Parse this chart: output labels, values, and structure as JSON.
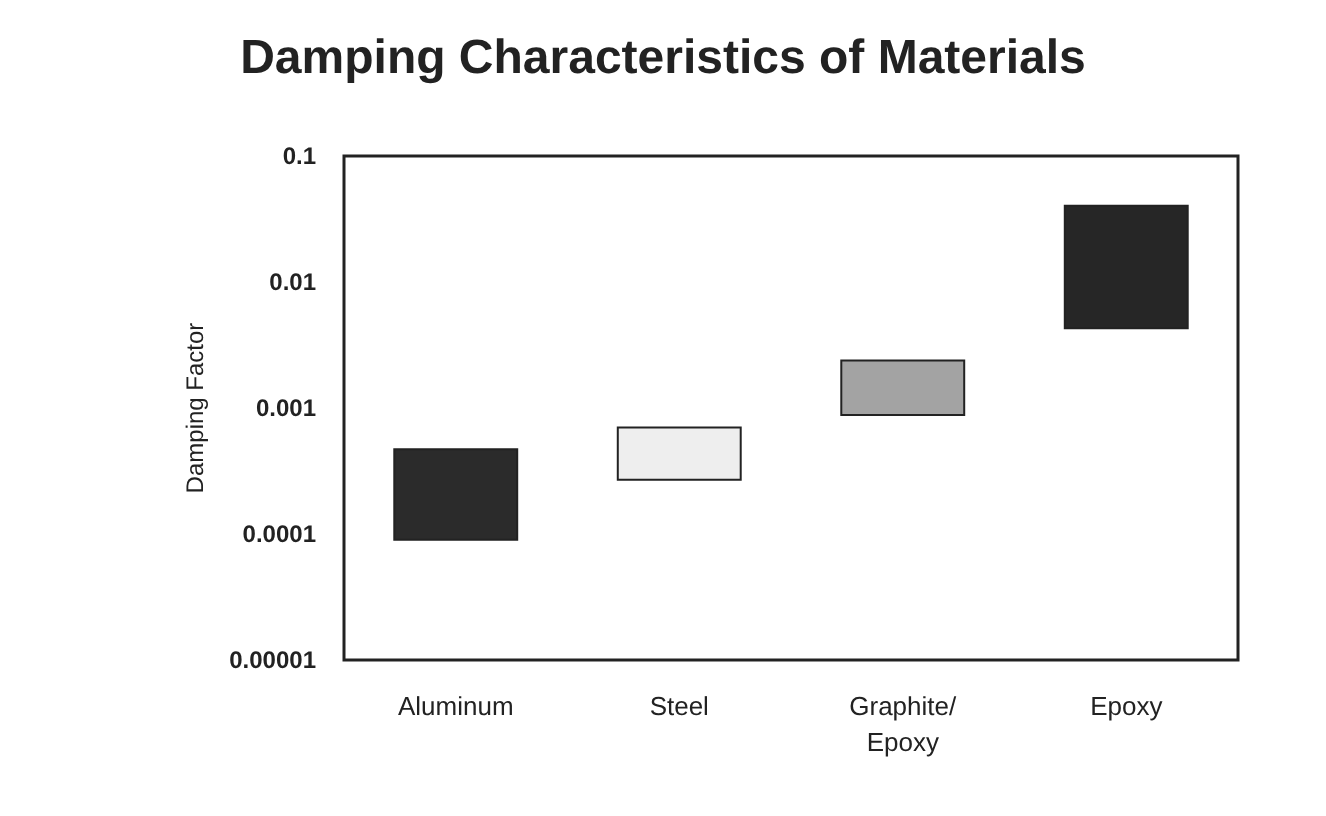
{
  "chart_data": {
    "type": "bar",
    "title": "Damping Characteristics of Materials",
    "ylabel": "Damping Factor",
    "categories": [
      "Aluminum",
      "Steel",
      "Graphite/\nEpoxy",
      "Epoxy"
    ],
    "base": [
      9e-05,
      0.00027,
      0.00088,
      0.0043
    ],
    "values": [
      0.00038,
      0.00043,
      0.0015,
      0.036
    ],
    "colors": [
      "#2b2b2b",
      "#eeeeee",
      "#a3a3a3",
      "#262626"
    ],
    "log": "y",
    "ylim": [
      1e-05,
      0.1
    ],
    "yticks": [
      {
        "value": 1e-05,
        "label": "0.00001"
      },
      {
        "value": 0.0001,
        "label": "0.0001"
      },
      {
        "value": 0.001,
        "label": "0.001"
      },
      {
        "value": 0.01,
        "label": "0.01"
      },
      {
        "value": 0.1,
        "label": "0.1"
      }
    ],
    "grid": false
  }
}
